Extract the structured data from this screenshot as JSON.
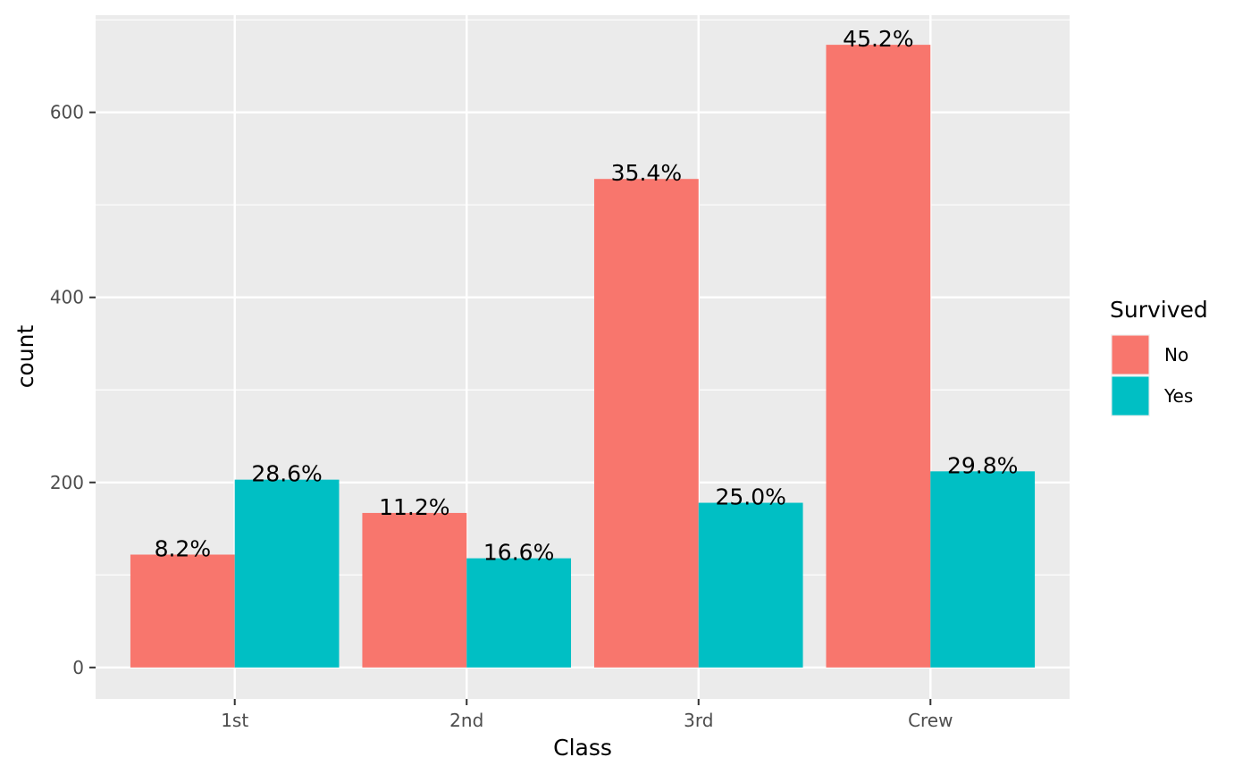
{
  "chart_data": {
    "type": "bar",
    "xlabel": "Class",
    "ylabel": "count",
    "categories": [
      "1st",
      "2nd",
      "3rd",
      "Crew"
    ],
    "y_ticks": [
      0,
      200,
      400,
      600
    ],
    "ylim": [
      -34,
      705
    ],
    "grid": true,
    "legend": {
      "title": "Survived",
      "placement": "right"
    },
    "series": [
      {
        "name": "No",
        "color": "#F8766D",
        "values": [
          122,
          167,
          528,
          673
        ],
        "labels": [
          "8.2%",
          "11.2%",
          "35.4%",
          "45.2%"
        ]
      },
      {
        "name": "Yes",
        "color": "#00BFC4",
        "values": [
          203,
          118,
          178,
          212
        ],
        "labels": [
          "28.6%",
          "16.6%",
          "25.0%",
          "29.8%"
        ]
      }
    ]
  }
}
